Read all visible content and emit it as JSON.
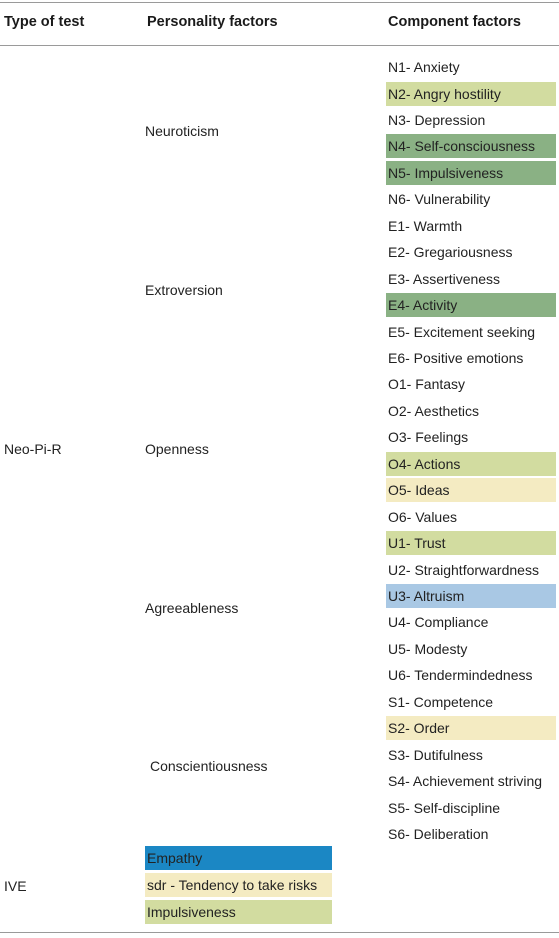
{
  "headers": [
    "Type of test",
    "Personality factors",
    "Component factors"
  ],
  "colors": {
    "olive": "#d2dca0",
    "green": "#8ab184",
    "cream": "#f4ebc2",
    "lightblue": "#a9c8e4",
    "blue": "#1b87c4",
    "none": "transparent"
  },
  "neo": {
    "type": "Neo-Pi-R",
    "factors": [
      {
        "label": "Neuroticism",
        "components": [
          {
            "text": "N1- Anxiety",
            "color": "none"
          },
          {
            "text": "N2- Angry hostility",
            "color": "olive"
          },
          {
            "text": "N3- Depression",
            "color": "none"
          },
          {
            "text": "N4- Self-consciousness",
            "color": "green"
          },
          {
            "text": "N5- Impulsiveness",
            "color": "green"
          },
          {
            "text": "N6- Vulnerability",
            "color": "none"
          }
        ]
      },
      {
        "label": "Extroversion",
        "components": [
          {
            "text": "E1- Warmth",
            "color": "none"
          },
          {
            "text": "E2- Gregariousness",
            "color": "none"
          },
          {
            "text": "E3- Assertiveness",
            "color": "none"
          },
          {
            "text": "E4- Activity",
            "color": "green"
          },
          {
            "text": "E5- Excitement seeking",
            "color": "none"
          },
          {
            "text": "E6- Positive emotions",
            "color": "none"
          }
        ]
      },
      {
        "label": "Openness",
        "components": [
          {
            "text": "O1- Fantasy",
            "color": "none"
          },
          {
            "text": "O2- Aesthetics",
            "color": "none"
          },
          {
            "text": "O3- Feelings",
            "color": "none"
          },
          {
            "text": "O4- Actions",
            "color": "olive"
          },
          {
            "text": "O5- Ideas",
            "color": "cream"
          },
          {
            "text": "O6- Values",
            "color": "none"
          }
        ]
      },
      {
        "label": "Agreeableness",
        "components": [
          {
            "text": "U1- Trust",
            "color": "olive"
          },
          {
            "text": "U2- Straightforwardness",
            "color": "none"
          },
          {
            "text": "U3- Altruism",
            "color": "lightblue"
          },
          {
            "text": "U4- Compliance",
            "color": "none"
          },
          {
            "text": "U5- Modesty",
            "color": "none"
          },
          {
            "text": "U6- Tendermindedness",
            "color": "none"
          }
        ]
      },
      {
        "label": "Conscientiousness",
        "components": [
          {
            "text": "S1- Competence",
            "color": "none"
          },
          {
            "text": "S2- Order",
            "color": "cream"
          },
          {
            "text": "S3- Dutifulness",
            "color": "none"
          },
          {
            "text": "S4- Achievement striving",
            "color": "none"
          },
          {
            "text": "S5- Self-discipline",
            "color": "none"
          },
          {
            "text": "S6- Deliberation",
            "color": "none"
          }
        ]
      }
    ]
  },
  "ive": {
    "type": "IVE",
    "factors": [
      {
        "text": "Empathy",
        "color": "blue"
      },
      {
        "text": "sdr - Tendency to take risks",
        "color": "cream"
      },
      {
        "text": "Impulsiveness",
        "color": "olive"
      }
    ]
  }
}
